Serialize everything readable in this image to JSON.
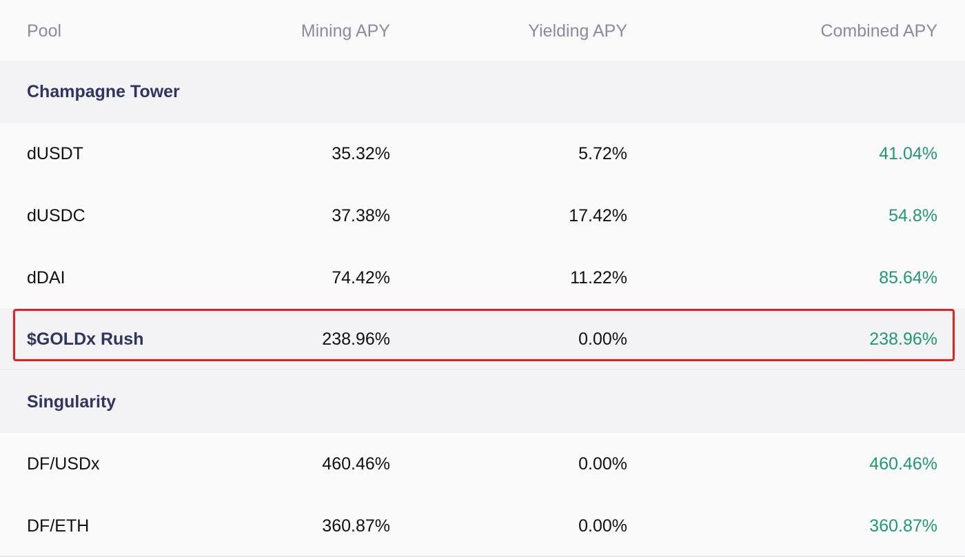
{
  "columns": {
    "pool": "Pool",
    "mining": "Mining APY",
    "yielding": "Yielding APY",
    "combined": "Combined APY"
  },
  "groups": [
    {
      "name": "Champagne Tower",
      "rows": [
        {
          "pool": "dUSDT",
          "mining": "35.32%",
          "yielding": "5.72%",
          "combined": "41.04%"
        },
        {
          "pool": "dUSDC",
          "mining": "37.38%",
          "yielding": "17.42%",
          "combined": "54.8%"
        },
        {
          "pool": "dDAI",
          "mining": "74.42%",
          "yielding": "11.22%",
          "combined": "85.64%"
        }
      ]
    },
    {
      "name": "$GOLDx Rush",
      "mining": "238.96%",
      "yielding": "0.00%",
      "combined": "238.96%"
    },
    {
      "name": "Singularity",
      "rows": [
        {
          "pool": "DF/USDx",
          "mining": "460.46%",
          "yielding": "0.00%",
          "combined": "460.46%"
        },
        {
          "pool": "DF/ETH",
          "mining": "360.87%",
          "yielding": "0.00%",
          "combined": "360.87%"
        }
      ]
    }
  ],
  "colors": {
    "header_text": "#8b8aa0",
    "group_text": "#2f3560",
    "positive": "#1f9a73",
    "highlight_border": "#e52222"
  }
}
